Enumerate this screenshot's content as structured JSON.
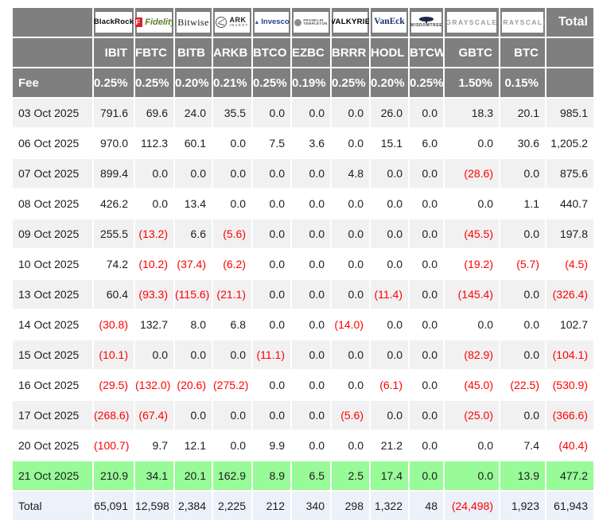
{
  "chart_data": {
    "type": "table",
    "description": "Bitcoin ETF daily flow table (US$m), negative values shown in red parentheses",
    "providers": [
      {
        "style": "blackrock",
        "parts": [
          "BlackRock"
        ]
      },
      {
        "style": "fidelity",
        "parts": [
          "F",
          "Fidelity"
        ]
      },
      {
        "style": "bitwise",
        "parts": [
          "Bitwise"
        ]
      },
      {
        "style": "ark",
        "parts": [
          "ARK",
          "INVEST"
        ]
      },
      {
        "style": "invesco",
        "parts": [
          "Invesco"
        ]
      },
      {
        "style": "franklin",
        "parts": [
          "FRANKLIN",
          "TEMPLETON"
        ]
      },
      {
        "style": "valkyrie",
        "parts": [
          "VALKYRIE"
        ]
      },
      {
        "style": "vaneck",
        "parts": [
          "VanEck"
        ]
      },
      {
        "style": "wisdomtree",
        "parts": [
          "WISDOMTREE"
        ]
      },
      {
        "style": "grayscale",
        "parts": [
          "GRAYSCALE"
        ]
      },
      {
        "style": "grayscale",
        "parts": [
          "GRAYSCALE"
        ]
      }
    ],
    "tickers": [
      "IBIT",
      "FBTC",
      "BITB",
      "ARKB",
      "BTCO",
      "EZBC",
      "BRRR",
      "HODL",
      "BTCW",
      "GBTC",
      "BTC"
    ],
    "fee_row": {
      "label": "Fee",
      "values": [
        "0.25%",
        "0.25%",
        "0.20%",
        "0.21%",
        "0.25%",
        "0.19%",
        "0.25%",
        "0.20%",
        "0.25%",
        "1.50%",
        "0.15%"
      ]
    },
    "total_header": "Total",
    "rows": [
      {
        "date": "03 Oct 2025",
        "values": [
          "791.6",
          "69.6",
          "24.0",
          "35.5",
          "0.0",
          "0.0",
          "0.0",
          "26.0",
          "0.0",
          "18.3",
          "20.1"
        ],
        "total": "985.1",
        "highlight": false
      },
      {
        "date": "06 Oct 2025",
        "values": [
          "970.0",
          "112.3",
          "60.1",
          "0.0",
          "7.5",
          "3.6",
          "0.0",
          "15.1",
          "6.0",
          "0.0",
          "30.6"
        ],
        "total": "1,205.2",
        "highlight": false
      },
      {
        "date": "07 Oct 2025",
        "values": [
          "899.4",
          "0.0",
          "0.0",
          "0.0",
          "0.0",
          "0.0",
          "4.8",
          "0.0",
          "0.0",
          "(28.6)",
          "0.0"
        ],
        "total": "875.6",
        "highlight": false
      },
      {
        "date": "08 Oct 2025",
        "values": [
          "426.2",
          "0.0",
          "13.4",
          "0.0",
          "0.0",
          "0.0",
          "0.0",
          "0.0",
          "0.0",
          "0.0",
          "1.1"
        ],
        "total": "440.7",
        "highlight": false
      },
      {
        "date": "09 Oct 2025",
        "values": [
          "255.5",
          "(13.2)",
          "6.6",
          "(5.6)",
          "0.0",
          "0.0",
          "0.0",
          "0.0",
          "0.0",
          "(45.5)",
          "0.0"
        ],
        "total": "197.8",
        "highlight": false
      },
      {
        "date": "10 Oct 2025",
        "values": [
          "74.2",
          "(10.2)",
          "(37.4)",
          "(6.2)",
          "0.0",
          "0.0",
          "0.0",
          "0.0",
          "0.0",
          "(19.2)",
          "(5.7)"
        ],
        "total": "(4.5)",
        "highlight": false
      },
      {
        "date": "13 Oct 2025",
        "values": [
          "60.4",
          "(93.3)",
          "(115.6)",
          "(21.1)",
          "0.0",
          "0.0",
          "0.0",
          "(11.4)",
          "0.0",
          "(145.4)",
          "0.0"
        ],
        "total": "(326.4)",
        "highlight": false
      },
      {
        "date": "14 Oct 2025",
        "values": [
          "(30.8)",
          "132.7",
          "8.0",
          "6.8",
          "0.0",
          "0.0",
          "(14.0)",
          "0.0",
          "0.0",
          "0.0",
          "0.0"
        ],
        "total": "102.7",
        "highlight": false
      },
      {
        "date": "15 Oct 2025",
        "values": [
          "(10.1)",
          "0.0",
          "0.0",
          "0.0",
          "(11.1)",
          "0.0",
          "0.0",
          "0.0",
          "0.0",
          "(82.9)",
          "0.0"
        ],
        "total": "(104.1)",
        "highlight": false
      },
      {
        "date": "16 Oct 2025",
        "values": [
          "(29.5)",
          "(132.0)",
          "(20.6)",
          "(275.2)",
          "0.0",
          "0.0",
          "0.0",
          "(6.1)",
          "0.0",
          "(45.0)",
          "(22.5)"
        ],
        "total": "(530.9)",
        "highlight": false
      },
      {
        "date": "17 Oct 2025",
        "values": [
          "(268.6)",
          "(67.4)",
          "0.0",
          "0.0",
          "0.0",
          "0.0",
          "(5.6)",
          "0.0",
          "0.0",
          "(25.0)",
          "0.0"
        ],
        "total": "(366.6)",
        "highlight": false
      },
      {
        "date": "20 Oct 2025",
        "values": [
          "(100.7)",
          "9.7",
          "12.1",
          "0.0",
          "9.9",
          "0.0",
          "0.0",
          "21.2",
          "0.0",
          "0.0",
          "7.4"
        ],
        "total": "(40.4)",
        "highlight": false
      },
      {
        "date": "21 Oct 2025",
        "values": [
          "210.9",
          "34.1",
          "20.1",
          "162.9",
          "8.9",
          "6.5",
          "2.5",
          "17.4",
          "0.0",
          "0.0",
          "13.9"
        ],
        "total": "477.2",
        "highlight": true
      }
    ],
    "total_row": {
      "label": "Total",
      "values": [
        "65,091",
        "12,598",
        "2,384",
        "2,225",
        "212",
        "340",
        "298",
        "1,322",
        "48",
        "(24,498)",
        "1,923"
      ],
      "total": "61,943"
    }
  },
  "icons": {
    "invesco_mountain": "▲"
  },
  "colors": {
    "header_bg": "#7f7f7f",
    "header_text": "#ffffff",
    "row_alt_bg": "#f1f1f2",
    "row_bg": "#ffffff",
    "highlight_row_bg": "#98fb98",
    "total_row_bg": "#ecf1fa",
    "negative_text": "#ff0000",
    "body_text": "#1c1c1c"
  }
}
